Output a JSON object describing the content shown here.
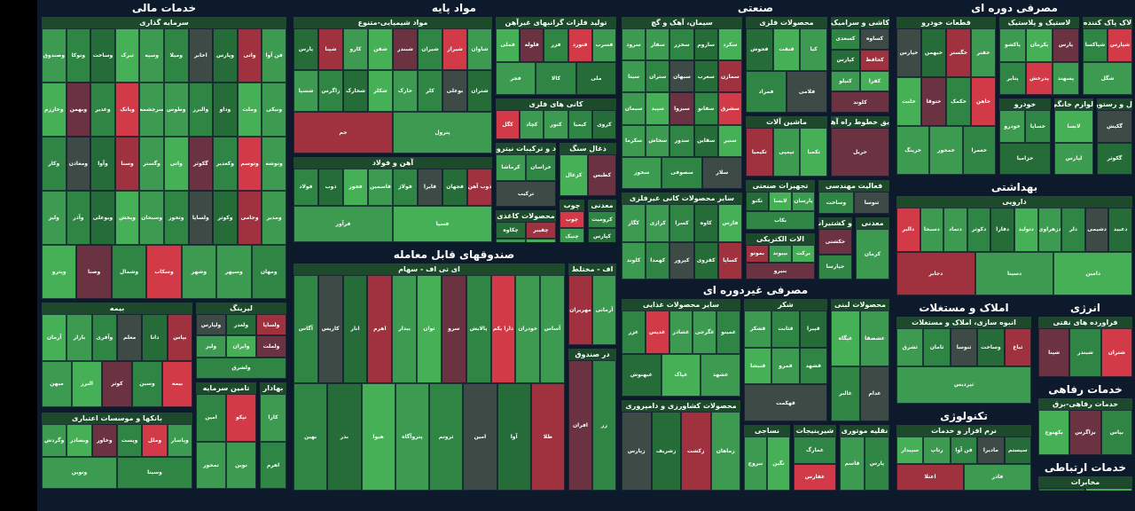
{
  "colors": {
    "background": "#0d1a2c",
    "positive": "#2e7d3e",
    "strong_positive": "#46b057",
    "neutral": "#3e4a45",
    "negative": "#a0323f",
    "strong_negative": "#d23a47"
  },
  "sectors": [
    {
      "id": "financial",
      "title": "خدمات مالی",
      "industries": [
        {
          "title": "سرمایه گذاری",
          "symbols": [
            "وصندوق",
            "وتوکا",
            "وساخت",
            "ثبرک",
            "وسپه",
            "ومیلا",
            "اخابر",
            "وپارس",
            "واتی",
            "فن آوا",
            "وخارزم",
            "وبهمن",
            "وغدیر",
            "وبانک",
            "سرچشمه",
            "وطوس",
            "والبرز",
            "وداو",
            "وملت",
            "ونیکی",
            "وکار",
            "ومعادن",
            "وآوا",
            "وسنا",
            "وگستر",
            "واتی",
            "گکوثر",
            "وکغدیر",
            "وتوسم",
            "وتوشه",
            "ولیز",
            "وآذر",
            "وبوعلی",
            "وپخش",
            "وسبحان",
            "وثخوز",
            "ولساپا",
            "وکوثر",
            "وجامی",
            "ومدیر",
            "وپترو",
            "وصنا",
            "وشمال",
            "وسکاب",
            "وشهر",
            "وسپهر",
            "ومهان"
          ]
        },
        {
          "title": "بیمه",
          "symbols": [
            "آرمان",
            "بازار",
            "وآفری",
            "معلم",
            "دانا",
            "بپاس",
            "میهن",
            "البرز",
            "کوثر",
            "وسین",
            "بیمه"
          ]
        },
        {
          "title": "لیزینگ",
          "symbols": [
            "ولپارس",
            "ولغدر",
            "ولساپا",
            "ولیز",
            "وایران",
            "ولملت",
            "ولشرق"
          ]
        },
        {
          "title": "بانکها و موسسات اعتباری",
          "symbols": [
            "وگردش",
            "وبصادر",
            "وخاور",
            "وپست",
            "وملل",
            "وپاسار",
            "ونوین",
            "وسینا"
          ]
        },
        {
          "title": "تامین سرمایه",
          "symbols": [
            "امین",
            "تپکو",
            "تمحور",
            "نوین"
          ]
        },
        {
          "title": "بهادار",
          "symbols": [
            "کارا",
            "اهرم"
          ]
        }
      ]
    },
    {
      "id": "basic",
      "title": "مواد پایه",
      "industries": [
        {
          "title": "مواد شیمیایی-متنوع",
          "symbols": [
            "پارس",
            "شپنا",
            "کارو",
            "شفن",
            "شبندر",
            "شیران",
            "شیراز",
            "شاوان",
            "شسپا",
            "زاگرس",
            "شخارک",
            "شکلر",
            "خارک",
            "کلر",
            "بوعلی",
            "شتران",
            "جم",
            "پترول"
          ]
        },
        {
          "title": "تولید فلزات گرانبهای غیرآهن",
          "symbols": [
            "فملی",
            "فلوله",
            "فزر",
            "فنورد",
            "فسرب",
            "فجر",
            "کالا",
            "ملی"
          ]
        },
        {
          "title": "کانی های فلزی",
          "symbols": [
            "کگل",
            "کچاد",
            "کنور",
            "کیمیا",
            "کروی"
          ]
        },
        {
          "title": "آهن و فولاد",
          "symbols": [
            "فولاد",
            "ذوب",
            "فخوز",
            "فاسمین",
            "فولاژ",
            "فایرا",
            "فجهان",
            "ذوب آهن",
            "فرآور",
            "فسپا"
          ]
        },
        {
          "title": "د و ترکیبات نیتروژن",
          "symbols": [
            "کرماشا",
            "خراسان",
            "ترکیب"
          ]
        },
        {
          "title": "محصولات کاغذی",
          "symbols": [
            "چکاوه",
            "چفیبر",
            "چکارن",
            "چدن"
          ]
        },
        {
          "title": "ذغال سنگ",
          "symbols": [
            "کزغال",
            "کطبس"
          ]
        },
        {
          "title": "چوب",
          "symbols": [
            "چوب",
            "چنیک"
          ]
        },
        {
          "title": "معدنی",
          "symbols": [
            "کرومیت",
            "کپارس"
          ]
        }
      ]
    },
    {
      "id": "industrial",
      "title": "صنعتی",
      "industries": [
        {
          "title": "سیمان، آهک و گچ",
          "symbols": [
            "سرود",
            "سفار",
            "سخزر",
            "ساروم",
            "سکرد",
            "سیتا",
            "ستران",
            "سبهان",
            "سغرب",
            "سمازن",
            "سیمان",
            "سپید",
            "سبزوا",
            "سفانو",
            "سشرق",
            "سکرما",
            "سخاش",
            "سدور",
            "سقاین",
            "سنیر",
            "سخوز",
            "سصوفی",
            "سلار"
          ]
        },
        {
          "title": "محصولات فلزی",
          "symbols": [
            "فجوش",
            "فنفت",
            "کیا",
            "فمراد",
            "فلامی"
          ]
        },
        {
          "title": "کاشی و سرامیک",
          "symbols": [
            "کسعدی",
            "کساوه",
            "کپارس",
            "کحافظ",
            "کنیلو",
            "کفرا",
            "کلوند"
          ]
        },
        {
          "title": "ماشین آلات",
          "symbols": [
            "تکیمیا",
            "تپمپی",
            "تکمبا"
          ]
        },
        {
          "title": "یق خطوط راه آهن",
          "symbols": [
            "حریل"
          ]
        },
        {
          "title": "سایر محصولات کانی غیرفلزی",
          "symbols": [
            "کگاز",
            "کرازی",
            "کسرا",
            "کاوه",
            "فارس",
            "کلوند",
            "کهمدا",
            "کپرور",
            "کقزوی",
            "کساپا"
          ]
        },
        {
          "title": "تجهیزات صنعتی",
          "symbols": [
            "تکنو",
            "لابسا",
            "پارسان",
            "بکاب"
          ]
        },
        {
          "title": "فعالیت مهندسی",
          "symbols": [
            "وساخت",
            "ثنوسا"
          ]
        },
        {
          "title": "الات الکتریکی",
          "symbols": [
            "بموتو",
            "بپیوند",
            "برکت",
            "بنیرو"
          ]
        },
        {
          "title": "و کشتیرانی",
          "symbols": [
            "حکشتی",
            "حپارسا"
          ]
        },
        {
          "title": "معدنی",
          "symbols": [
            "کرمان"
          ]
        }
      ]
    },
    {
      "id": "consumer",
      "title": "مصرفی دوره ای",
      "industries": [
        {
          "title": "قطعات خودرو",
          "symbols": [
            "خپارس",
            "خبهمن",
            "خگستر",
            "خفنر",
            "خلنت",
            "ختوقا",
            "خکمک",
            "خاهن",
            "خرینگ",
            "خمحور",
            "خعمرا"
          ]
        },
        {
          "title": "لاستیک و پلاستیک",
          "symbols": [
            "پاکشو",
            "پکرمان",
            "پارس",
            "پتایر",
            "پدرخش",
            "پسهند"
          ]
        },
        {
          "title": "لاک پاک کننده",
          "symbols": [
            "شپاکسا",
            "شپارس",
            "شگل"
          ]
        },
        {
          "title": "خودرو",
          "symbols": [
            "خودرو",
            "خساپا",
            "خزامیا"
          ]
        },
        {
          "title": "لوازم خانگی",
          "symbols": [
            "لابسا",
            "لپارس"
          ]
        },
        {
          "title": "ل و رستوران",
          "symbols": [
            "گکیش",
            "گکوثر"
          ]
        }
      ]
    },
    {
      "id": "health",
      "title": "بهداشتی",
      "industries": [
        {
          "title": "دارویی",
          "symbols": [
            "دالبر",
            "دسبحا",
            "دتماد",
            "دکوثر",
            "دفارا",
            "دتولید",
            "دزهراوی",
            "دلر",
            "دشیمی",
            "دعبید",
            "دجابر",
            "دسینا",
            "دامین"
          ]
        }
      ]
    },
    {
      "id": "etf",
      "title": "صندوقهای قابل معامله",
      "industries": [
        {
          "title": "ای تی اف - سهام",
          "symbols": [
            "آگاس",
            "کاریس",
            "انار",
            "اهرم",
            "بیدار",
            "توان",
            "سرو",
            "پالایش",
            "دارا یکم",
            "خودران",
            "آساس",
            "بهین",
            "بذر",
            "هیوا",
            "پتروآگاه",
            "ثروتم",
            "امین",
            "آوا",
            "طلا"
          ]
        },
        {
          "title": "اف - مختلط",
          "symbols": [
            "مهریران",
            "آرمانی"
          ]
        },
        {
          "title": "در صندوق",
          "symbols": [
            "افران",
            "زر"
          ]
        }
      ]
    },
    {
      "id": "nonconsumer",
      "title": "مصرفی غیردوره ای",
      "industries": [
        {
          "title": "سایر محصولات غذایی",
          "symbols": [
            "غزر",
            "غدیس",
            "غشاذر",
            "غگرجی",
            "غمینو",
            "غبهنوش",
            "غپاک",
            "غشهد"
          ]
        },
        {
          "title": "شکر",
          "symbols": [
            "قشکر",
            "قثابت",
            "قپیرا",
            "قنیشا",
            "قمرو",
            "قشهد",
            "قهکمت"
          ]
        },
        {
          "title": "محصولات لبنی",
          "symbols": [
            "غپگاه",
            "غشصفا",
            "غالبر",
            "غدام"
          ]
        },
        {
          "title": "محصولات کشاورزی و دامپروری",
          "symbols": [
            "زپارس",
            "زشریف",
            "زکشت",
            "زماهان"
          ]
        },
        {
          "title": "نساجی",
          "symbols": [
            "نبروج",
            "نگین"
          ]
        },
        {
          "title": "شیرینیجات",
          "symbols": [
            "غمارگ",
            "غفارس"
          ]
        },
        {
          "title": "نقلیه موتوری",
          "symbols": [
            "قاسم",
            "پارس"
          ]
        }
      ]
    },
    {
      "id": "realestate",
      "title": "املاک و مستغلات",
      "industries": [
        {
          "title": "انبوه سازی، املاک و مستغلات",
          "symbols": [
            "ثشرق",
            "ثامان",
            "ثنوسا",
            "وساخت",
            "ثباغ",
            "ثپردیس"
          ]
        }
      ]
    },
    {
      "id": "energy",
      "title": "انرژی",
      "industries": [
        {
          "title": "فراورده های نفتی",
          "symbols": [
            "شپنا",
            "شبندر",
            "شتران"
          ]
        }
      ]
    },
    {
      "id": "tech",
      "title": "تکنولوژی",
      "industries": [
        {
          "title": "نرم افزار و خدمات",
          "symbols": [
            "سپیدار",
            "رتاپ",
            "فن آوا",
            "مادیرا",
            "سیستم",
            "اعتلا",
            "فاذر"
          ]
        }
      ]
    },
    {
      "id": "welfare",
      "title": "خدمات رفاهی",
      "industries": [
        {
          "title": "خدمات رفاهی-برق",
          "symbols": [
            "بکهنوج",
            "بزاگرس",
            "بپاس"
          ]
        }
      ]
    },
    {
      "id": "telecom",
      "title": "خدمات ارتباطی",
      "industries": [
        {
          "title": "مخابرات",
          "symbols": [
            "اخابر",
            "همراه"
          ]
        }
      ]
    }
  ]
}
